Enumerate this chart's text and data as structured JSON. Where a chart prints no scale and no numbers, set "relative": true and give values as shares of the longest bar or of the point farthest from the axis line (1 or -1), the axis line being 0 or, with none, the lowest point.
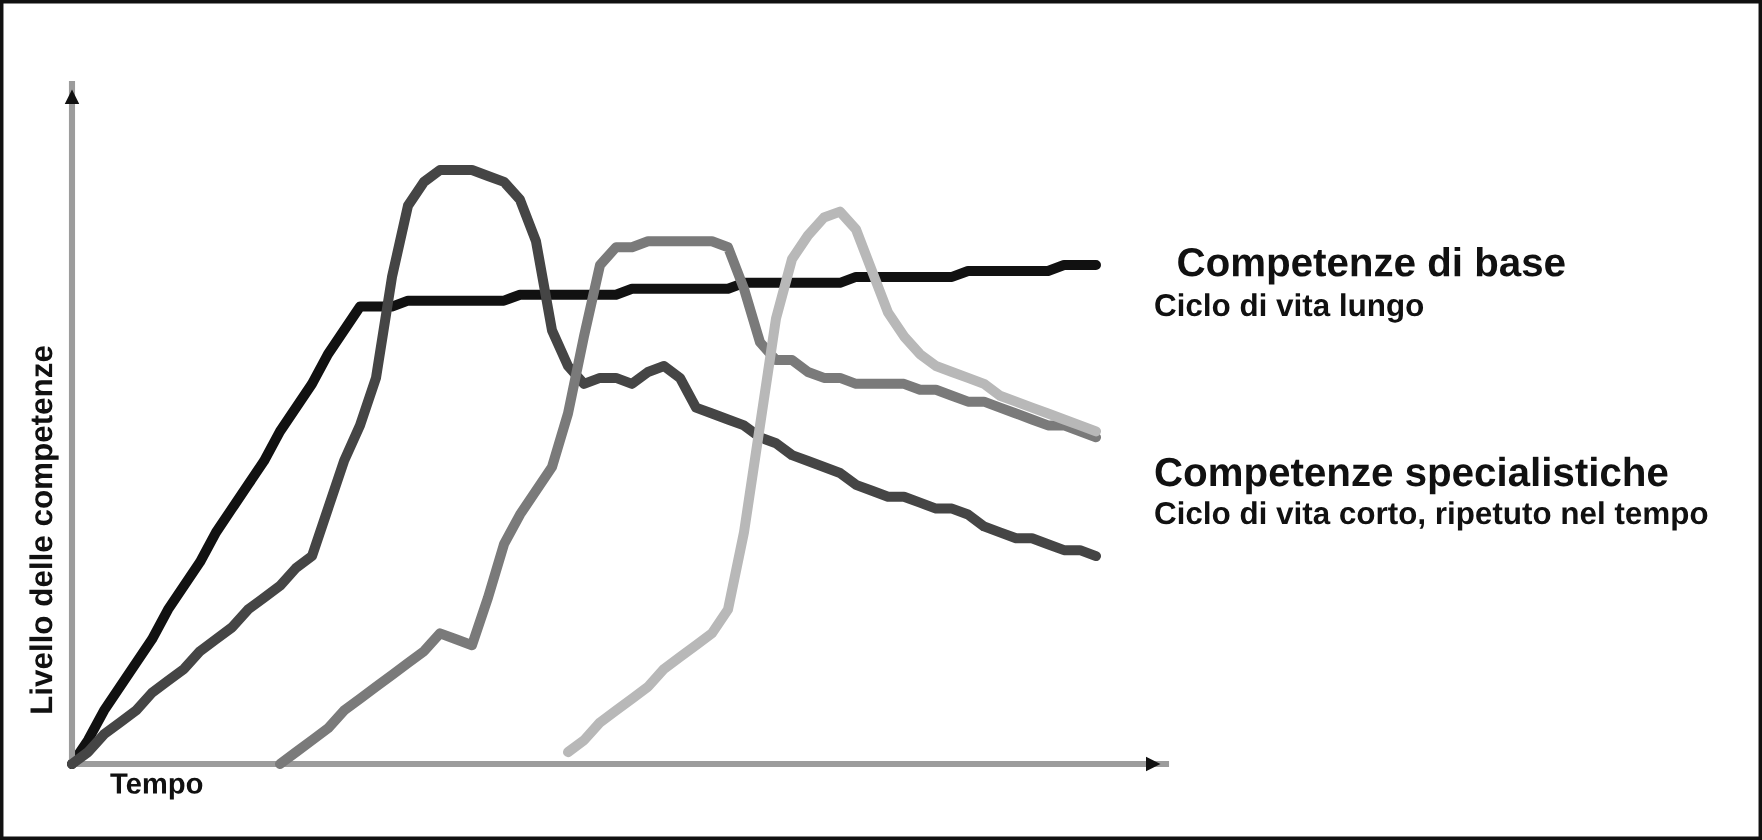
{
  "chart_data": {
    "type": "line",
    "relative": true,
    "xlabel": "Tempo",
    "ylabel": "Livello delle competenze",
    "line_style": "solid",
    "categories": [
      null,
      null,
      null,
      null,
      null,
      null,
      null,
      null,
      null,
      null,
      null,
      null,
      null,
      null,
      null,
      null,
      null,
      null,
      null,
      null,
      null,
      null,
      null,
      null,
      null,
      null,
      null,
      null,
      null,
      null,
      null,
      null,
      null,
      null,
      null,
      null,
      null,
      null,
      null,
      null,
      null,
      null,
      null,
      null,
      null,
      null,
      null,
      null,
      null,
      null,
      null,
      null,
      null,
      null,
      null,
      null,
      null,
      null,
      null,
      null,
      null,
      null,
      null,
      null,
      null
    ],
    "series": [
      {
        "name": "Competenze di base",
        "color": "#111111",
        "values": [
          0,
          0.04,
          0.09,
          0.13,
          0.17,
          0.21,
          0.26,
          0.3,
          0.34,
          0.39,
          0.43,
          0.47,
          0.51,
          0.56,
          0.6,
          0.64,
          0.69,
          0.73,
          0.77,
          0.77,
          0.77,
          0.78,
          0.78,
          0.78,
          0.78,
          0.78,
          0.78,
          0.78,
          0.79,
          0.79,
          0.79,
          0.79,
          0.79,
          0.79,
          0.79,
          0.8,
          0.8,
          0.8,
          0.8,
          0.8,
          0.8,
          0.8,
          0.81,
          0.81,
          0.81,
          0.81,
          0.81,
          0.81,
          0.81,
          0.82,
          0.82,
          0.82,
          0.82,
          0.82,
          0.82,
          0.82,
          0.83,
          0.83,
          0.83,
          0.83,
          0.83,
          0.83,
          0.84,
          0.84,
          0.84
        ]
      },
      {
        "color": "#454545",
        "values": [
          0,
          0.02,
          0.05,
          0.07,
          0.09,
          0.12,
          0.14,
          0.16,
          0.19,
          0.21,
          0.23,
          0.26,
          0.28,
          0.3,
          0.33,
          0.35,
          0.43,
          0.51,
          0.57,
          0.65,
          0.82,
          0.94,
          0.98,
          1.0,
          1.0,
          1.0,
          0.99,
          0.98,
          0.95,
          0.88,
          0.73,
          0.67,
          0.64,
          0.65,
          0.65,
          0.64,
          0.66,
          0.67,
          0.65,
          0.6,
          0.59,
          0.58,
          0.57,
          0.55,
          0.54,
          0.52,
          0.51,
          0.5,
          0.49,
          0.47,
          0.46,
          0.45,
          0.45,
          0.44,
          0.43,
          0.43,
          0.42,
          0.4,
          0.39,
          0.38,
          0.38,
          0.37,
          0.36,
          0.36,
          0.35
        ]
      },
      {
        "color": "#7a7a7a",
        "values": [
          null,
          null,
          null,
          null,
          null,
          null,
          null,
          null,
          null,
          null,
          null,
          null,
          null,
          0.0,
          0.02,
          0.04,
          0.06,
          0.09,
          0.11,
          0.13,
          0.15,
          0.17,
          0.19,
          0.22,
          0.21,
          0.2,
          0.28,
          0.37,
          0.42,
          0.46,
          0.5,
          0.59,
          0.72,
          0.84,
          0.87,
          0.87,
          0.88,
          0.88,
          0.88,
          0.88,
          0.88,
          0.87,
          0.8,
          0.71,
          0.68,
          0.68,
          0.66,
          0.65,
          0.65,
          0.64,
          0.64,
          0.64,
          0.64,
          0.63,
          0.63,
          0.62,
          0.61,
          0.61,
          0.6,
          0.59,
          0.58,
          0.57,
          0.57,
          0.56,
          0.55
        ]
      },
      {
        "color": "#b8b8b8",
        "values": [
          null,
          null,
          null,
          null,
          null,
          null,
          null,
          null,
          null,
          null,
          null,
          null,
          null,
          null,
          null,
          null,
          null,
          null,
          null,
          null,
          null,
          null,
          null,
          null,
          null,
          null,
          null,
          null,
          null,
          null,
          null,
          0.02,
          0.04,
          0.07,
          0.09,
          0.11,
          0.13,
          0.16,
          0.18,
          0.2,
          0.22,
          0.26,
          0.39,
          0.57,
          0.75,
          0.85,
          0.89,
          0.92,
          0.93,
          0.9,
          0.83,
          0.76,
          0.72,
          0.69,
          0.67,
          0.66,
          0.65,
          0.64,
          0.62,
          0.61,
          0.6,
          0.59,
          0.58,
          0.57,
          0.56
        ]
      }
    ],
    "annotations": [
      "Ciclo di vita lungo",
      "Competenze specialistiche",
      "Ciclo di vita corto, ripetuto nel tempo"
    ]
  }
}
